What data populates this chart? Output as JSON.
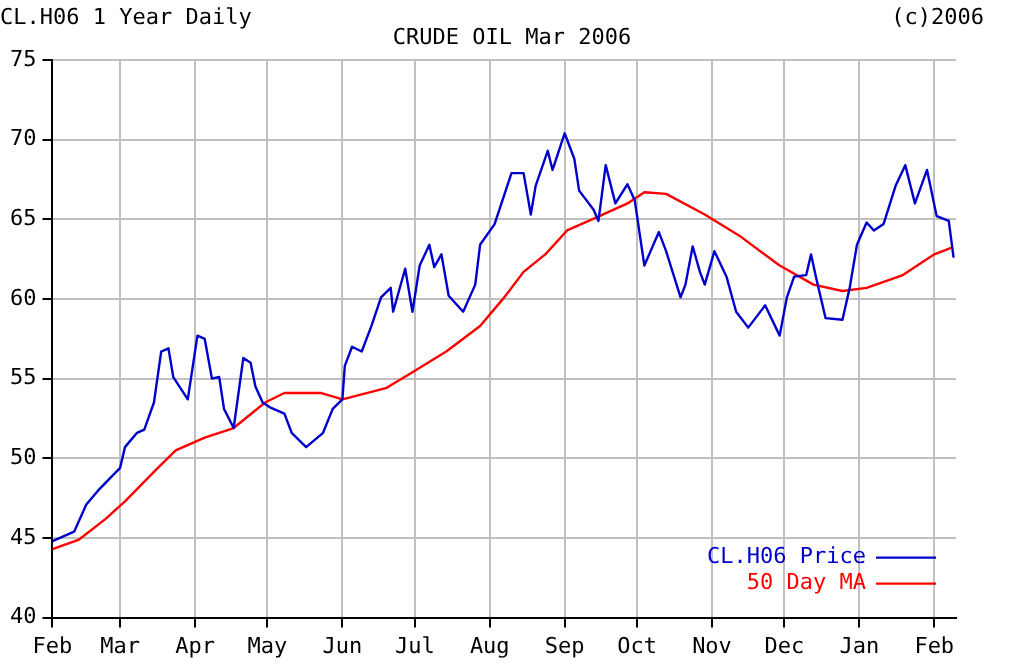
{
  "chart_data": {
    "type": "line",
    "title": "CRUDE OIL Mar 2006",
    "annotations": [
      "CL.H06 1 Year Daily",
      "(c)2006"
    ],
    "xlim": [
      "2005-02-01",
      "2006-02-10"
    ],
    "xticks": [
      {
        "value": "2005-02-01",
        "label": "Feb"
      },
      {
        "value": "2005-03-01",
        "label": "Mar"
      },
      {
        "value": "2005-04-01",
        "label": "Apr"
      },
      {
        "value": "2005-05-01",
        "label": "May"
      },
      {
        "value": "2005-06-01",
        "label": "Jun"
      },
      {
        "value": "2005-07-01",
        "label": "Jul"
      },
      {
        "value": "2005-08-01",
        "label": "Aug"
      },
      {
        "value": "2005-09-01",
        "label": "Sep"
      },
      {
        "value": "2005-10-01",
        "label": "Oct"
      },
      {
        "value": "2005-11-01",
        "label": "Nov"
      },
      {
        "value": "2005-12-01",
        "label": "Dec"
      },
      {
        "value": "2006-01-01",
        "label": "Jan"
      },
      {
        "value": "2006-02-01",
        "label": "Feb"
      }
    ],
    "ylim": [
      40,
      75
    ],
    "yticks": [
      40,
      45,
      50,
      55,
      60,
      65,
      70,
      75
    ],
    "grid": true,
    "legend": "bottom right",
    "marker": "none",
    "line_style": "solid",
    "series": [
      {
        "name": "CL.H06 Price",
        "color": "#0000cc",
        "x": [
          "2005-02-01",
          "2005-02-10",
          "2005-02-15",
          "2005-02-20",
          "2005-03-01",
          "2005-03-03",
          "2005-03-08",
          "2005-03-11",
          "2005-03-15",
          "2005-03-18",
          "2005-03-21",
          "2005-03-23",
          "2005-03-29",
          "2005-04-02",
          "2005-04-05",
          "2005-04-08",
          "2005-04-11",
          "2005-04-13",
          "2005-04-17",
          "2005-04-21",
          "2005-04-24",
          "2005-04-26",
          "2005-04-29",
          "2005-05-02",
          "2005-05-08",
          "2005-05-11",
          "2005-05-17",
          "2005-05-24",
          "2005-05-28",
          "2005-06-01",
          "2005-06-02",
          "2005-06-05",
          "2005-06-09",
          "2005-06-13",
          "2005-06-17",
          "2005-06-21",
          "2005-06-22",
          "2005-06-27",
          "2005-06-30",
          "2005-07-03",
          "2005-07-07",
          "2005-07-09",
          "2005-07-12",
          "2005-07-15",
          "2005-07-21",
          "2005-07-26",
          "2005-07-28",
          "2005-08-03",
          "2005-08-10",
          "2005-08-15",
          "2005-08-18",
          "2005-08-20",
          "2005-08-25",
          "2005-08-27",
          "2005-09-01",
          "2005-09-05",
          "2005-09-07",
          "2005-09-13",
          "2005-09-15",
          "2005-09-18",
          "2005-09-22",
          "2005-09-27",
          "2005-09-30",
          "2005-10-04",
          "2005-10-10",
          "2005-10-13",
          "2005-10-19",
          "2005-10-21",
          "2005-10-24",
          "2005-10-27",
          "2005-10-29",
          "2005-11-02",
          "2005-11-07",
          "2005-11-11",
          "2005-11-16",
          "2005-11-23",
          "2005-11-29",
          "2005-12-02",
          "2005-12-05",
          "2005-12-10",
          "2005-12-12",
          "2005-12-14",
          "2005-12-18",
          "2005-12-25",
          "2005-12-28",
          "2005-12-31",
          "2006-01-04",
          "2006-01-07",
          "2006-01-11",
          "2006-01-16",
          "2006-01-20",
          "2006-01-24",
          "2006-01-29",
          "2006-02-02",
          "2006-02-07",
          "2006-02-09"
        ],
        "values": [
          44.8,
          45.4,
          47.1,
          48.0,
          49.4,
          50.7,
          51.6,
          51.8,
          53.5,
          56.7,
          56.9,
          55.1,
          53.7,
          57.7,
          57.5,
          55.0,
          55.1,
          53.1,
          51.9,
          56.3,
          56.0,
          54.5,
          53.5,
          53.2,
          52.8,
          51.6,
          50.7,
          51.6,
          53.1,
          53.7,
          55.8,
          57.0,
          56.7,
          58.3,
          60.1,
          60.7,
          59.2,
          61.9,
          59.2,
          62.1,
          63.4,
          62.0,
          62.8,
          60.2,
          59.2,
          60.9,
          63.4,
          64.7,
          67.9,
          67.9,
          65.3,
          67.1,
          69.3,
          68.1,
          70.4,
          68.8,
          66.8,
          65.6,
          64.9,
          68.4,
          66.0,
          67.2,
          66.2,
          62.1,
          64.2,
          63.0,
          60.1,
          60.9,
          63.3,
          61.7,
          60.9,
          63.0,
          61.4,
          59.2,
          58.2,
          59.6,
          57.7,
          60.1,
          61.4,
          61.5,
          62.8,
          61.4,
          58.8,
          58.7,
          60.7,
          63.4,
          64.8,
          64.3,
          64.7,
          67.1,
          68.4,
          66.0,
          68.1,
          65.2,
          64.9,
          62.6
        ]
      },
      {
        "name": "50 Day MA",
        "color": "#ff0000",
        "x": [
          "2005-02-01",
          "2005-02-12",
          "2005-02-23",
          "2005-03-03",
          "2005-03-16",
          "2005-03-24",
          "2005-04-05",
          "2005-04-17",
          "2005-04-30",
          "2005-05-08",
          "2005-05-23",
          "2005-06-01",
          "2005-06-19",
          "2005-06-30",
          "2005-07-14",
          "2005-07-28",
          "2005-08-07",
          "2005-08-15",
          "2005-08-24",
          "2005-09-02",
          "2005-09-14",
          "2005-09-27",
          "2005-10-04",
          "2005-10-13",
          "2005-10-29",
          "2005-11-13",
          "2005-11-29",
          "2005-12-13",
          "2005-12-25",
          "2006-01-04",
          "2006-01-19",
          "2006-02-01",
          "2006-02-08"
        ],
        "values": [
          44.3,
          44.9,
          46.2,
          47.3,
          49.3,
          50.5,
          51.3,
          51.9,
          53.5,
          54.1,
          54.1,
          53.7,
          54.4,
          55.4,
          56.7,
          58.3,
          60.1,
          61.7,
          62.8,
          64.3,
          65.1,
          66.0,
          66.7,
          66.6,
          65.3,
          63.9,
          62.1,
          60.9,
          60.5,
          60.7,
          61.5,
          62.8,
          63.2
        ]
      }
    ]
  }
}
